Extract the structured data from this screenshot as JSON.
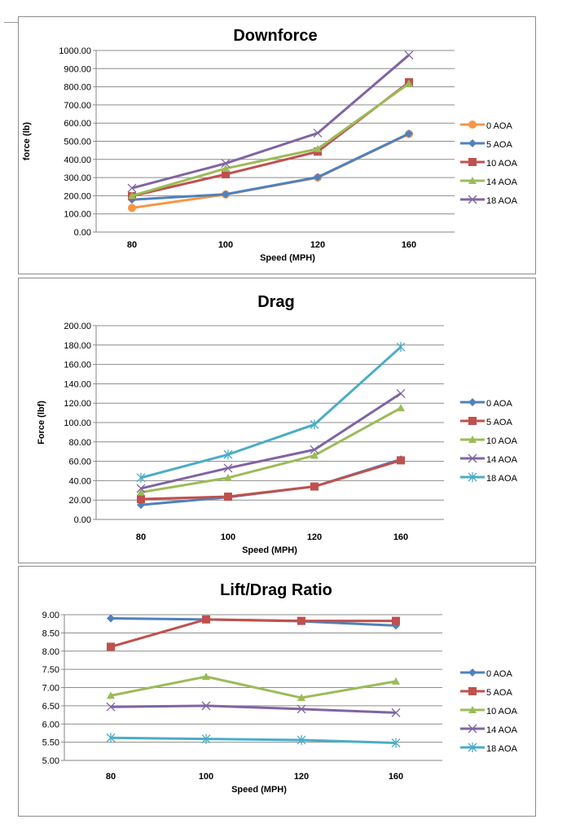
{
  "chart_data": [
    {
      "type": "line",
      "title": "Downforce",
      "xlabel": "Speed (MPH)",
      "ylabel": "force (lb)",
      "categories": [
        "80",
        "100",
        "120",
        "160"
      ],
      "ylim": [
        0,
        1000
      ],
      "yticks": [
        "0.00",
        "100.00",
        "200.00",
        "300.00",
        "400.00",
        "500.00",
        "600.00",
        "700.00",
        "800.00",
        "900.00",
        "1000.00"
      ],
      "grid": true,
      "legend": "right",
      "series": [
        {
          "name": "0 AOA",
          "color": "#f79646",
          "marker": "circle",
          "values": [
            133,
            207,
            300,
            540
          ]
        },
        {
          "name": "5 AOA",
          "color": "#4f81bd",
          "marker": "diamond",
          "values": [
            178,
            208,
            302,
            542
          ]
        },
        {
          "name": "10 AOA",
          "color": "#c0504d",
          "marker": "square",
          "values": [
            198,
            318,
            443,
            825
          ]
        },
        {
          "name": "14 AOA",
          "color": "#9bbb59",
          "marker": "triangle",
          "values": [
            200,
            350,
            458,
            818
          ]
        },
        {
          "name": "18 AOA",
          "color": "#8064a2",
          "marker": "x",
          "values": [
            242,
            378,
            545,
            975
          ]
        }
      ]
    },
    {
      "type": "line",
      "title": "Drag",
      "xlabel": "Speed (MPH)",
      "ylabel": "Force (lbf)",
      "categories": [
        "80",
        "100",
        "120",
        "160"
      ],
      "ylim": [
        0,
        200
      ],
      "yticks": [
        "0.00",
        "20.00",
        "40.00",
        "60.00",
        "80.00",
        "100.00",
        "120.00",
        "140.00",
        "160.00",
        "180.00",
        "200.00"
      ],
      "grid": true,
      "legend": "right",
      "series": [
        {
          "name": "0 AOA",
          "color": "#4f81bd",
          "marker": "diamond",
          "values": [
            15,
            23,
            34,
            62
          ]
        },
        {
          "name": "5 AOA",
          "color": "#c0504d",
          "marker": "square",
          "values": [
            21,
            23.5,
            34,
            61
          ]
        },
        {
          "name": "10 AOA",
          "color": "#9bbb59",
          "marker": "triangle",
          "values": [
            28,
            43,
            66,
            115
          ]
        },
        {
          "name": "14 AOA",
          "color": "#8064a2",
          "marker": "x",
          "values": [
            32,
            53,
            72,
            130
          ]
        },
        {
          "name": "18 AOA",
          "color": "#4bacc6",
          "marker": "star",
          "values": [
            43,
            67,
            98,
            178
          ]
        }
      ]
    },
    {
      "type": "line",
      "title": "Lift/Drag Ratio",
      "xlabel": "Speed (MPH)",
      "ylabel": "",
      "categories": [
        "80",
        "100",
        "120",
        "160"
      ],
      "ylim": [
        5,
        9
      ],
      "yticks": [
        "5.00",
        "5.50",
        "6.00",
        "6.50",
        "7.00",
        "7.50",
        "8.00",
        "8.50",
        "9.00"
      ],
      "grid": true,
      "legend": "right",
      "series": [
        {
          "name": "0 AOA",
          "color": "#4f81bd",
          "marker": "diamond",
          "values": [
            8.9,
            8.87,
            8.82,
            8.7
          ]
        },
        {
          "name": "5 AOA",
          "color": "#c0504d",
          "marker": "square",
          "values": [
            8.12,
            8.87,
            8.83,
            8.83
          ]
        },
        {
          "name": "10 AOA",
          "color": "#9bbb59",
          "marker": "triangle",
          "values": [
            6.78,
            7.3,
            6.72,
            7.17
          ]
        },
        {
          "name": "14 AOA",
          "color": "#8064a2",
          "marker": "x",
          "values": [
            6.47,
            6.5,
            6.41,
            6.31
          ]
        },
        {
          "name": "18 AOA",
          "color": "#4bacc6",
          "marker": "star",
          "values": [
            5.62,
            5.59,
            5.56,
            5.48
          ]
        }
      ]
    }
  ]
}
